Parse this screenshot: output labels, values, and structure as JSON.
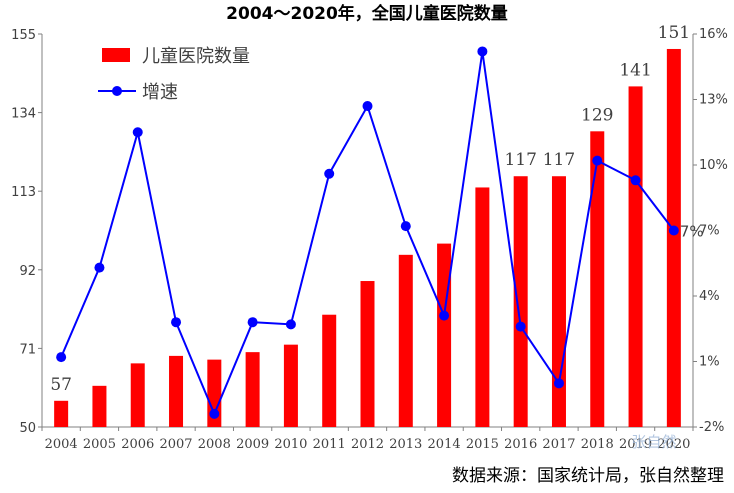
{
  "chart_data": {
    "type": "bar",
    "title": "2004～2020年，全国儿童医院数量",
    "categories": [
      "2004",
      "2005",
      "2006",
      "2007",
      "2008",
      "2009",
      "2010",
      "2011",
      "2012",
      "2013",
      "2014",
      "2015",
      "2016",
      "2017",
      "2018",
      "2019",
      "2020"
    ],
    "series": [
      {
        "name": "儿童医院数量",
        "type": "bar",
        "axis": "left",
        "color": "#ff0000",
        "values": [
          57,
          61,
          67,
          69,
          68,
          70,
          72,
          80,
          89,
          96,
          99,
          114,
          117,
          117,
          129,
          141,
          151
        ]
      },
      {
        "name": "增速",
        "type": "line",
        "axis": "right",
        "color": "#0000ff",
        "values": [
          1.2,
          5.3,
          11.5,
          2.8,
          -1.4,
          2.8,
          2.7,
          9.6,
          12.7,
          7.2,
          3.1,
          15.2,
          2.6,
          0.0,
          10.2,
          9.3,
          7.0
        ]
      }
    ],
    "left_axis": {
      "min": 50,
      "max": 155,
      "ticks": [
        "50",
        "71",
        "92",
        "113",
        "134",
        "155"
      ]
    },
    "right_axis": {
      "min": -2,
      "max": 16,
      "ticks": [
        "-2%",
        "1%",
        "4%",
        "7%",
        "10%",
        "13%",
        "16%"
      ]
    },
    "data_labels": [
      {
        "index": 0,
        "text": "57"
      },
      {
        "index": 12,
        "text": "117"
      },
      {
        "index": 13,
        "text": "117"
      },
      {
        "index": 14,
        "text": "129"
      },
      {
        "index": 15,
        "text": "141"
      },
      {
        "index": 16,
        "text": "151"
      }
    ],
    "line_label": {
      "index": 16,
      "text": "7%"
    },
    "legend": {
      "placement": "top-left"
    },
    "grid": false,
    "source_note": "数据来源：国家统计局，张自然整理",
    "watermark": "张自然"
  }
}
